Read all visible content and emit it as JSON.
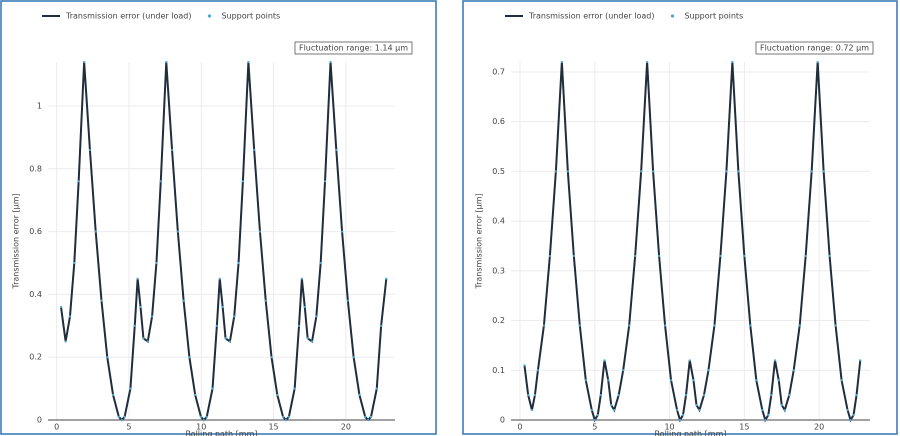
{
  "chart_data": [
    {
      "type": "line",
      "xlabel": "Rolling path [mm]",
      "ylabel": "Transmission error [µm]",
      "annotation": "Fluctuation range: 1.14 µm",
      "x": [
        0.3,
        0.62,
        0.92,
        1.22,
        1.52,
        1.9,
        2.3,
        2.7,
        3.1,
        3.5,
        3.9,
        4.3,
        4.5,
        4.7,
        5.1,
        5.4,
        5.6,
        5.8,
        6.0,
        6.3,
        6.6,
        6.9,
        7.2,
        7.58,
        7.98,
        8.38,
        8.78,
        9.18,
        9.58,
        9.98,
        10.18,
        10.38,
        10.78,
        11.08,
        11.28,
        11.48,
        11.68,
        11.98,
        12.28,
        12.58,
        12.88,
        13.26,
        13.66,
        14.06,
        14.46,
        14.86,
        15.26,
        15.66,
        15.86,
        16.06,
        16.46,
        16.76,
        16.96,
        17.16,
        17.36,
        17.66,
        17.96,
        18.26,
        18.56,
        18.94,
        19.34,
        19.74,
        20.14,
        20.54,
        20.94,
        21.34,
        21.54,
        21.74,
        22.14,
        22.44,
        22.8
      ],
      "series": [
        {
          "name": "Transmission error (under load)",
          "color": "#1f2d3d",
          "values": [
            0.36,
            0.25,
            0.33,
            0.5,
            0.76,
            1.14,
            0.86,
            0.6,
            0.38,
            0.2,
            0.08,
            0.01,
            0,
            0.01,
            0.1,
            0.3,
            0.45,
            0.36,
            0.26,
            0.25,
            0.33,
            0.5,
            0.76,
            1.14,
            0.86,
            0.6,
            0.38,
            0.2,
            0.08,
            0.01,
            0,
            0.01,
            0.1,
            0.3,
            0.45,
            0.36,
            0.26,
            0.25,
            0.33,
            0.5,
            0.76,
            1.14,
            0.86,
            0.6,
            0.38,
            0.2,
            0.08,
            0.01,
            0,
            0.01,
            0.1,
            0.3,
            0.45,
            0.36,
            0.26,
            0.25,
            0.33,
            0.5,
            0.76,
            1.14,
            0.86,
            0.6,
            0.38,
            0.2,
            0.08,
            0.01,
            0,
            0.01,
            0.1,
            0.3,
            0.45
          ]
        }
      ],
      "support_points": {
        "name": "Support points",
        "color": "#4aa8d8"
      },
      "xlim": [
        -0.6,
        23.4
      ],
      "xticks": [
        0,
        5,
        10,
        15,
        20
      ],
      "ylim": [
        0,
        1.14
      ],
      "yticks": [
        0,
        0.2,
        0.4,
        0.6,
        0.8,
        1
      ],
      "grid": true
    },
    {
      "type": "line",
      "xlabel": "Rolling path [mm]",
      "ylabel": "Transmission error [µm]",
      "annotation": "Fluctuation range: 0.72 µm",
      "x": [
        0.3,
        0.55,
        0.8,
        1.0,
        1.2,
        1.6,
        2.0,
        2.4,
        2.8,
        3.2,
        3.6,
        4.0,
        4.4,
        4.8,
        5.0,
        5.2,
        5.4,
        5.65,
        5.9,
        6.1,
        6.3,
        6.6,
        6.9,
        7.3,
        7.7,
        8.1,
        8.5,
        8.9,
        9.3,
        9.7,
        10.1,
        10.5,
        10.7,
        10.9,
        11.1,
        11.35,
        11.6,
        11.8,
        12.0,
        12.3,
        12.6,
        13.0,
        13.4,
        13.8,
        14.2,
        14.6,
        15.0,
        15.4,
        15.8,
        16.2,
        16.4,
        16.6,
        16.8,
        17.05,
        17.3,
        17.5,
        17.7,
        18.0,
        18.3,
        18.7,
        19.1,
        19.5,
        19.9,
        20.3,
        20.7,
        21.1,
        21.5,
        21.9,
        22.1,
        22.3,
        22.5,
        22.75
      ],
      "series": [
        {
          "name": "Transmission error (under load)",
          "color": "#1f2d3d",
          "values": [
            0.11,
            0.05,
            0.02,
            0.05,
            0.1,
            0.19,
            0.33,
            0.5,
            0.72,
            0.5,
            0.33,
            0.19,
            0.08,
            0.02,
            0,
            0.01,
            0.05,
            0.12,
            0.08,
            0.03,
            0.02,
            0.05,
            0.1,
            0.19,
            0.33,
            0.5,
            0.72,
            0.5,
            0.33,
            0.19,
            0.08,
            0.02,
            0,
            0.01,
            0.05,
            0.12,
            0.08,
            0.03,
            0.02,
            0.05,
            0.1,
            0.19,
            0.33,
            0.5,
            0.72,
            0.5,
            0.33,
            0.19,
            0.08,
            0.02,
            0,
            0.01,
            0.05,
            0.12,
            0.08,
            0.03,
            0.02,
            0.05,
            0.1,
            0.19,
            0.33,
            0.5,
            0.72,
            0.5,
            0.33,
            0.19,
            0.08,
            0.02,
            0,
            0.01,
            0.05,
            0.12
          ]
        }
      ],
      "support_points": {
        "name": "Support points",
        "color": "#4aa8d8"
      },
      "xlim": [
        -0.6,
        23.4
      ],
      "xticks": [
        0,
        5,
        10,
        15,
        20
      ],
      "ylim": [
        0,
        0.72
      ],
      "yticks": [
        0,
        0.1,
        0.2,
        0.3,
        0.4,
        0.5,
        0.6,
        0.7
      ],
      "grid": true
    }
  ]
}
